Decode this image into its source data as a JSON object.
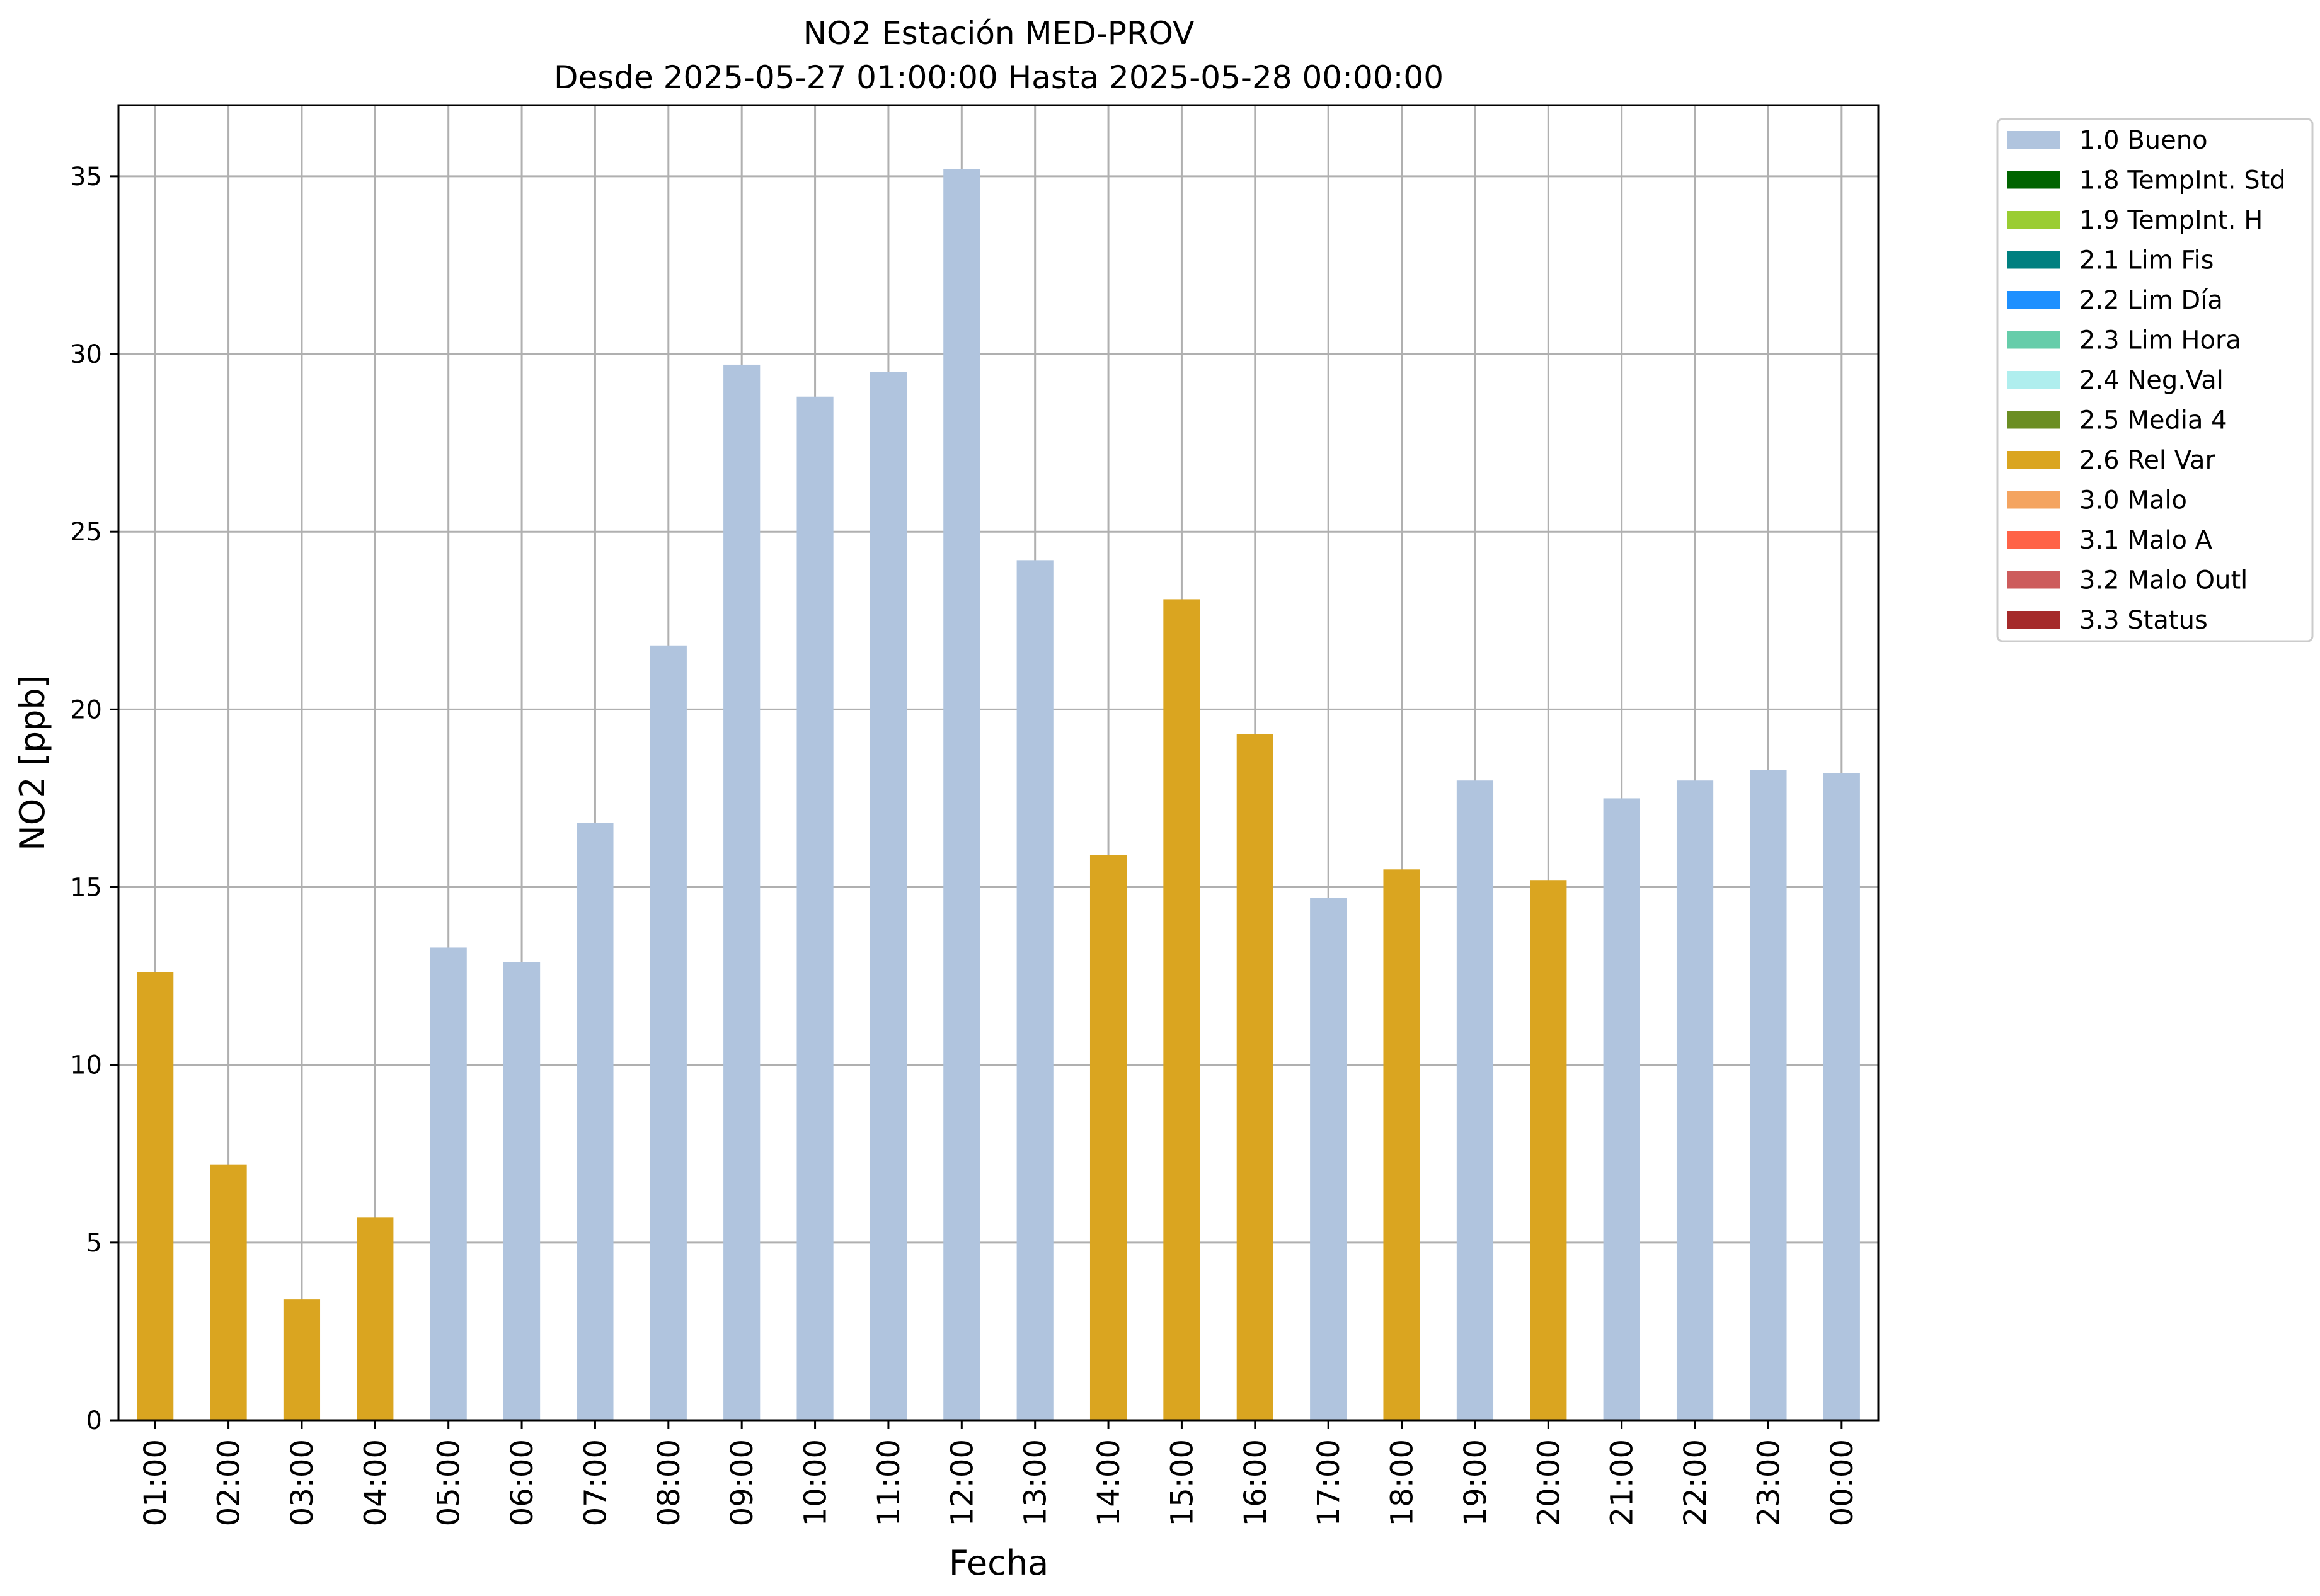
{
  "chart_data": {
    "type": "bar",
    "title": "NO2 Estación MED-PROV",
    "subtitle": "Desde 2025-05-27 01:00:00 Hasta 2025-05-28 00:00:00",
    "xlabel": "Fecha",
    "ylabel": "NO2 [ppb]",
    "ylim": [
      0,
      37
    ],
    "yticks": [
      0,
      5,
      10,
      15,
      20,
      25,
      30,
      35
    ],
    "grid": true,
    "legend_position": "outside-top-right",
    "categories": [
      "01:00",
      "02:00",
      "03:00",
      "04:00",
      "05:00",
      "06:00",
      "07:00",
      "08:00",
      "09:00",
      "10:00",
      "11:00",
      "12:00",
      "13:00",
      "14:00",
      "15:00",
      "16:00",
      "17:00",
      "18:00",
      "19:00",
      "20:00",
      "21:00",
      "22:00",
      "23:00",
      "00:00"
    ],
    "values": [
      12.6,
      7.2,
      3.4,
      5.7,
      13.3,
      12.9,
      16.8,
      21.8,
      29.7,
      28.8,
      29.5,
      35.2,
      24.2,
      15.9,
      23.1,
      19.3,
      14.7,
      15.5,
      18.0,
      15.2,
      17.5,
      18.0,
      18.3,
      18.2
    ],
    "flags": [
      "2.6 Rel Var",
      "2.6 Rel Var",
      "2.6 Rel Var",
      "2.6 Rel Var",
      "1.0 Bueno",
      "1.0 Bueno",
      "1.0 Bueno",
      "1.0 Bueno",
      "1.0 Bueno",
      "1.0 Bueno",
      "1.0 Bueno",
      "1.0 Bueno",
      "1.0 Bueno",
      "2.6 Rel Var",
      "2.6 Rel Var",
      "2.6 Rel Var",
      "1.0 Bueno",
      "2.6 Rel Var",
      "1.0 Bueno",
      "2.6 Rel Var",
      "1.0 Bueno",
      "1.0 Bueno",
      "1.0 Bueno",
      "1.0 Bueno"
    ],
    "legend": [
      {
        "label": "1.0 Bueno",
        "color": "#b0c4de"
      },
      {
        "label": "1.8 TempInt. Std",
        "color": "#006400"
      },
      {
        "label": "1.9 TempInt. H",
        "color": "#9acd32"
      },
      {
        "label": "2.1 Lim Fis",
        "color": "#008080"
      },
      {
        "label": "2.2 Lim Día",
        "color": "#1e90ff"
      },
      {
        "label": "2.3 Lim Hora",
        "color": "#66cdaa"
      },
      {
        "label": "2.4 Neg.Val",
        "color": "#afeeee"
      },
      {
        "label": "2.5 Media 4",
        "color": "#6b8e23"
      },
      {
        "label": "2.6 Rel Var",
        "color": "#daa520"
      },
      {
        "label": "3.0 Malo",
        "color": "#f4a460"
      },
      {
        "label": "3.1 Malo A",
        "color": "#ff6347"
      },
      {
        "label": "3.2 Malo Outl",
        "color": "#cd5c5c"
      },
      {
        "label": "3.3 Status",
        "color": "#a52a2a"
      }
    ]
  }
}
